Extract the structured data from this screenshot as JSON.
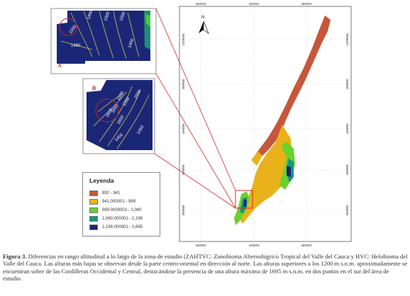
{
  "figure": {
    "panel_a_letter": "A",
    "panel_b_letter": "B",
    "north_letter": "N",
    "inset_a_contours": [
      "1450",
      "1500",
      "1550",
      "1550",
      "1450",
      "1450"
    ],
    "inset_b_contours": [
      "1500",
      "1550",
      "1500",
      "1600",
      "1650",
      "1650",
      "1450",
      "1450"
    ],
    "axis_top": [
      "280000",
      "330000",
      "380000"
    ],
    "axis_bottom": [
      "280000",
      "330000",
      "380000"
    ],
    "axis_left": [
      "1320000",
      "480000",
      "440000",
      "400000",
      "360000"
    ],
    "axis_right": [
      "1320000",
      "480000",
      "440000",
      "400000",
      "360000"
    ]
  },
  "legend": {
    "title": "Leyenda",
    "items": [
      {
        "label": "892 - 941",
        "color": "#c8563a"
      },
      {
        "label": "941.000001 - 989",
        "color": "#e9b21b"
      },
      {
        "label": "989.0000001 - 1,060",
        "color": "#6bd12c"
      },
      {
        "label": "1,060.000001 - 1,198",
        "color": "#139a7a"
      },
      {
        "label": "1,198.000001 - 1,695",
        "color": "#17237a"
      }
    ]
  },
  "caption": {
    "label": "Figura 3.",
    "text": " Diferencias en rango altitudinal a lo largo de la zona de estudio (ZAHTVC: Zonobioma Alternohígrico Tropical del Valle del Cauca y HVC: Helobioma del Valle del Cauca. Las alturas más bajas se observan desde la parte centro-oriental en dirección al norte. Las alturas superiores a los 1200 m s.n.m. aproximadamente se encuentran sobre de las Cordilleras Occidental y Central, destacándose la presencia de una altura máxima de 1695 m s.n.m. en dos puntos en el sur del área de estudio."
  }
}
